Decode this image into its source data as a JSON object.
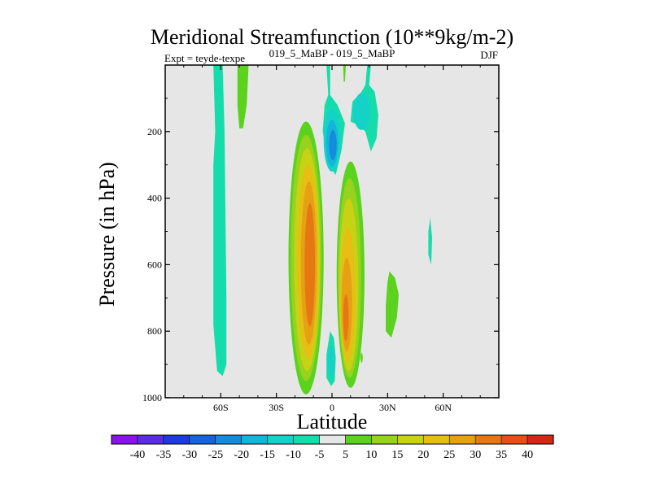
{
  "chart_data": {
    "type": "contour",
    "title": "Meridional Streamfunction (10**9kg/m-2)",
    "left_string": "Expt = teyde-texpe",
    "center_string": "019_5_MaBP - 019_5_MaBP",
    "right_string": "DJF",
    "xlabel": "Latitude",
    "ylabel": "Pressure (in hPa)",
    "xlim": [
      -90,
      90
    ],
    "ylim": [
      1000,
      0
    ],
    "x_ticks": [
      -60,
      -30,
      0,
      30,
      60
    ],
    "x_tick_labels": [
      "60S",
      "30S",
      "0",
      "30N",
      "60N"
    ],
    "y_ticks": [
      200,
      400,
      600,
      800,
      1000
    ],
    "y_tick_labels": [
      "200",
      "400",
      "600",
      "800",
      "1000"
    ],
    "colorbar": {
      "levels": [
        -40,
        -35,
        -30,
        -25,
        -20,
        -15,
        -10,
        -5,
        5,
        10,
        15,
        20,
        25,
        30,
        35,
        40
      ],
      "labels": [
        "-40",
        "-35",
        "-30",
        "-25",
        "-20",
        "-15",
        "-10",
        "-5",
        "5",
        "10",
        "15",
        "20",
        "25",
        "30",
        "35",
        "40"
      ],
      "colors": [
        "#8a14e6",
        "#5a2ee0",
        "#1e3cdc",
        "#1464dc",
        "#148cdc",
        "#14b4dc",
        "#14d2c8",
        "#14dcaa",
        "#e6e6e6",
        "#5ad21e",
        "#96d21e",
        "#c8d214",
        "#e6be14",
        "#e6a014",
        "#e67814",
        "#e65014",
        "#d22814"
      ]
    },
    "features": [
      {
        "name": "Southern subtropical column (negative)",
        "class": 7,
        "lat_range": [
          -64,
          -57
        ],
        "p_range": [
          0,
          930
        ]
      },
      {
        "name": "Southern upper positive cell",
        "class": 9,
        "lat_range": [
          -51,
          -45
        ],
        "p_range": [
          0,
          190
        ]
      },
      {
        "name": "Southern Hadley cell (positive)",
        "class": 14,
        "max_center": [
          -12,
          580
        ],
        "lat_range": [
          -23,
          -5
        ],
        "p_range": [
          180,
          990
        ]
      },
      {
        "name": "Northern Hadley cell (positive)",
        "class": 14,
        "max_center": [
          8,
          760
        ],
        "lat_range": [
          4,
          20
        ],
        "p_range": [
          290,
          970
        ]
      },
      {
        "name": "Equatorial upper negative cell",
        "class": 4,
        "center": [
          0,
          230
        ],
        "lat_range": [
          -5,
          5
        ],
        "p_range": [
          0,
          330
        ]
      },
      {
        "name": "Equatorial lower negative cell",
        "class": 6,
        "lat_range": [
          -3,
          2
        ],
        "p_range": [
          800,
          960
        ]
      },
      {
        "name": "Northern upper negative cell",
        "class": 6,
        "lat_range": [
          10,
          25
        ],
        "p_range": [
          0,
          220
        ]
      },
      {
        "name": "Northern mid-level positive cell",
        "class": 9,
        "lat_range": [
          29,
          36
        ],
        "p_range": [
          620,
          820
        ]
      },
      {
        "name": "High-latitude small negative cell",
        "class": 7,
        "lat_range": [
          52,
          54
        ],
        "p_range": [
          460,
          600
        ]
      }
    ]
  }
}
